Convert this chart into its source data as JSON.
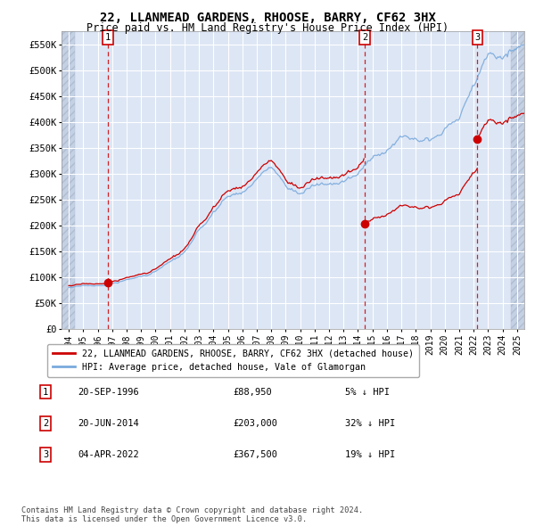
{
  "title": "22, LLANMEAD GARDENS, RHOOSE, BARRY, CF62 3HX",
  "subtitle": "Price paid vs. HM Land Registry's House Price Index (HPI)",
  "sale_label": "22, LLANMEAD GARDENS, RHOOSE, BARRY, CF62 3HX (detached house)",
  "hpi_label": "HPI: Average price, detached house, Vale of Glamorgan",
  "footer": "Contains HM Land Registry data © Crown copyright and database right 2024.\nThis data is licensed under the Open Government Licence v3.0.",
  "sale_color": "#cc0000",
  "hpi_color": "#7aaadd",
  "transactions": [
    {
      "num": 1,
      "date": "20-SEP-1996",
      "price": 88950,
      "pct": "5% ↓ HPI",
      "x": 1996.72
    },
    {
      "num": 2,
      "date": "20-JUN-2014",
      "price": 203000,
      "pct": "32% ↓ HPI",
      "x": 2014.47
    },
    {
      "num": 3,
      "date": "04-APR-2022",
      "price": 367500,
      "pct": "19% ↓ HPI",
      "x": 2022.26
    }
  ],
  "ylim": [
    0,
    575000
  ],
  "xlim": [
    1993.5,
    2025.5
  ],
  "yticks": [
    0,
    50000,
    100000,
    150000,
    200000,
    250000,
    300000,
    350000,
    400000,
    450000,
    500000,
    550000
  ],
  "ytick_labels": [
    "£0",
    "£50K",
    "£100K",
    "£150K",
    "£200K",
    "£250K",
    "£300K",
    "£350K",
    "£400K",
    "£450K",
    "£500K",
    "£550K"
  ],
  "xticks": [
    1994,
    1995,
    1996,
    1997,
    1998,
    1999,
    2000,
    2001,
    2002,
    2003,
    2004,
    2005,
    2006,
    2007,
    2008,
    2009,
    2010,
    2011,
    2012,
    2013,
    2014,
    2015,
    2016,
    2017,
    2018,
    2019,
    2020,
    2021,
    2022,
    2023,
    2024,
    2025
  ],
  "bg_color": "#dde6f5",
  "hatch_color": "#c4d0e4",
  "grid_color": "#ffffff",
  "hatch_left_end": 1994.42,
  "hatch_right_start": 2024.58
}
